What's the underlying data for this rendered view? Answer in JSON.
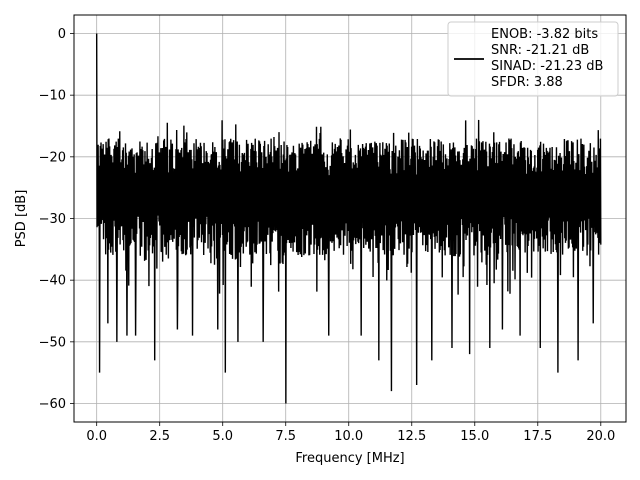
{
  "chart_data": {
    "type": "line",
    "xlabel": "Frequency [MHz]",
    "ylabel": "PSD [dB]",
    "xlim": [
      -0.9,
      21.0
    ],
    "ylim": [
      -63.0,
      3.0
    ],
    "grid": true,
    "x_ticks": [
      0,
      2.5,
      5,
      7.5,
      10,
      12.5,
      15,
      17.5,
      20
    ],
    "x_tick_labels": [
      "0.0",
      "2.5",
      "5.0",
      "7.5",
      "10.0",
      "12.5",
      "15.0",
      "17.5",
      "20.0"
    ],
    "y_ticks": [
      0,
      -10,
      -20,
      -30,
      -40,
      -50,
      -60
    ],
    "y_tick_labels": [
      "0",
      "−10",
      "−20",
      "−30",
      "−40",
      "−50",
      "−60"
    ],
    "legend_placement": "top-right",
    "legend_lines": [
      "ENOB: -3.82 bits",
      "SNR: -21.21 dB",
      "SINAD: -21.23 dB",
      "SFDR: 3.88"
    ],
    "series": [
      {
        "color": "#000000",
        "x_range": [
          0,
          20
        ],
        "points": 1400,
        "peak": {
          "x": 0.0,
          "y": 0.0
        },
        "band_upper": -17,
        "band_lower": -36,
        "dips": [
          {
            "x": 0.12,
            "y": -55
          },
          {
            "x": 0.45,
            "y": -47
          },
          {
            "x": 0.8,
            "y": -50
          },
          {
            "x": 1.2,
            "y": -49
          },
          {
            "x": 1.55,
            "y": -49
          },
          {
            "x": 2.3,
            "y": -53
          },
          {
            "x": 3.2,
            "y": -48
          },
          {
            "x": 3.8,
            "y": -49
          },
          {
            "x": 4.8,
            "y": -48
          },
          {
            "x": 5.1,
            "y": -55
          },
          {
            "x": 5.6,
            "y": -50
          },
          {
            "x": 6.6,
            "y": -50
          },
          {
            "x": 7.5,
            "y": -60
          },
          {
            "x": 9.2,
            "y": -49
          },
          {
            "x": 10.5,
            "y": -49
          },
          {
            "x": 11.2,
            "y": -53
          },
          {
            "x": 11.7,
            "y": -58
          },
          {
            "x": 12.7,
            "y": -57
          },
          {
            "x": 13.3,
            "y": -53
          },
          {
            "x": 14.1,
            "y": -51
          },
          {
            "x": 14.8,
            "y": -52
          },
          {
            "x": 15.6,
            "y": -51
          },
          {
            "x": 16.1,
            "y": -48
          },
          {
            "x": 16.8,
            "y": -49
          },
          {
            "x": 17.6,
            "y": -51
          },
          {
            "x": 18.3,
            "y": -55
          },
          {
            "x": 19.1,
            "y": -53
          },
          {
            "x": 19.7,
            "y": -47
          }
        ]
      }
    ]
  }
}
